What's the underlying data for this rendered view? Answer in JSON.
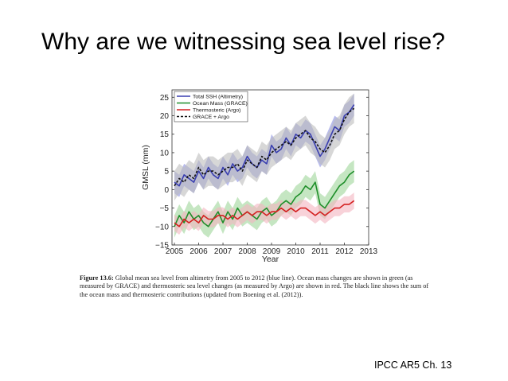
{
  "slide": {
    "title": "Why are we witnessing sea level rise?",
    "source": "IPCC AR5 Ch. 13"
  },
  "figure": {
    "caption_label": "Figure 13.6:",
    "caption_text": "Global mean sea level from altimetry from 2005 to 2012 (blue line). Ocean mass changes are shown in green (as measured by GRACE) and thermosteric sea level changes (as measured by Argo) are shown in red. The black line shows the sum of the ocean mass and thermosteric contributions (updated from Boening et al. (2012))."
  },
  "chart_data": {
    "type": "line",
    "title": "",
    "xlabel": "Year",
    "ylabel": "GMSL (mm)",
    "xlim": [
      2004.9,
      2013
    ],
    "ylim": [
      -15,
      27
    ],
    "xticks": [
      2005,
      2006,
      2007,
      2008,
      2009,
      2010,
      2011,
      2012,
      2013
    ],
    "yticks": [
      -15,
      -10,
      -5,
      0,
      5,
      10,
      15,
      20,
      25
    ],
    "ytick_labels": [
      "−15",
      "−10",
      "−5",
      "0",
      "5",
      "10",
      "15",
      "20",
      "25"
    ],
    "legend_position": "top-left",
    "series": [
      {
        "name": "Total SSH (Altimetry)",
        "color": "#3a3fb0",
        "band_color": "#8a8fe0",
        "dash": false,
        "band": 3,
        "x": [
          2005.0,
          2005.2,
          2005.4,
          2005.6,
          2005.8,
          2006.0,
          2006.2,
          2006.4,
          2006.6,
          2006.8,
          2007.0,
          2007.2,
          2007.4,
          2007.6,
          2007.8,
          2008.0,
          2008.2,
          2008.4,
          2008.6,
          2008.8,
          2009.0,
          2009.2,
          2009.4,
          2009.6,
          2009.8,
          2010.0,
          2010.2,
          2010.4,
          2010.6,
          2010.8,
          2011.0,
          2011.2,
          2011.4,
          2011.6,
          2011.8,
          2012.0,
          2012.2,
          2012.4
        ],
        "y": [
          2,
          1,
          4,
          3,
          2,
          5,
          3,
          6,
          4,
          3,
          6,
          4,
          7,
          5,
          6,
          9,
          7,
          6,
          8,
          7,
          12,
          10,
          11,
          14,
          12,
          15,
          14,
          16,
          15,
          12,
          9,
          11,
          14,
          17,
          16,
          20,
          21,
          23
        ]
      },
      {
        "name": "Ocean Mass (GRACE)",
        "color": "#1f8f2a",
        "band_color": "#9fd69a",
        "dash": false,
        "band": 3,
        "x": [
          2005.0,
          2005.2,
          2005.4,
          2005.6,
          2005.8,
          2006.0,
          2006.2,
          2006.4,
          2006.6,
          2006.8,
          2007.0,
          2007.2,
          2007.4,
          2007.6,
          2007.8,
          2008.0,
          2008.2,
          2008.4,
          2008.6,
          2008.8,
          2009.0,
          2009.2,
          2009.4,
          2009.6,
          2009.8,
          2010.0,
          2010.2,
          2010.4,
          2010.6,
          2010.8,
          2011.0,
          2011.2,
          2011.4,
          2011.6,
          2011.8,
          2012.0,
          2012.2,
          2012.4
        ],
        "y": [
          -10,
          -7,
          -9,
          -6,
          -8,
          -7,
          -9,
          -10,
          -8,
          -6,
          -9,
          -6,
          -8,
          -5,
          -7,
          -6,
          -7,
          -8,
          -6,
          -5,
          -7,
          -6,
          -4,
          -3,
          -4,
          -2,
          -1,
          1,
          0,
          2,
          -4,
          -5,
          -3,
          -1,
          1,
          2,
          4,
          5
        ]
      },
      {
        "name": "Thermosteric (Argo)",
        "color": "#d42020",
        "band_color": "#f4b4c0",
        "dash": false,
        "band": 2.2,
        "x": [
          2005.0,
          2005.2,
          2005.4,
          2005.6,
          2005.8,
          2006.0,
          2006.2,
          2006.4,
          2006.6,
          2006.8,
          2007.0,
          2007.2,
          2007.4,
          2007.6,
          2007.8,
          2008.0,
          2008.2,
          2008.4,
          2008.6,
          2008.8,
          2009.0,
          2009.2,
          2009.4,
          2009.6,
          2009.8,
          2010.0,
          2010.2,
          2010.4,
          2010.6,
          2010.8,
          2011.0,
          2011.2,
          2011.4,
          2011.6,
          2011.8,
          2012.0,
          2012.2,
          2012.4
        ],
        "y": [
          -9,
          -10,
          -8,
          -9,
          -8,
          -9,
          -7,
          -8,
          -8,
          -7,
          -7,
          -8,
          -7,
          -8,
          -7,
          -6,
          -7,
          -6,
          -6,
          -7,
          -6,
          -6,
          -5,
          -6,
          -5,
          -6,
          -5,
          -5,
          -6,
          -7,
          -6,
          -7,
          -6,
          -5,
          -5,
          -4,
          -4,
          -3
        ]
      },
      {
        "name": "GRACE + Argo",
        "color": "#111111",
        "band_color": "#bdbdbd",
        "dash": true,
        "band": 4,
        "x": [
          2005.0,
          2005.2,
          2005.4,
          2005.6,
          2005.8,
          2006.0,
          2006.2,
          2006.4,
          2006.6,
          2006.8,
          2007.0,
          2007.2,
          2007.4,
          2007.6,
          2007.8,
          2008.0,
          2008.2,
          2008.4,
          2008.6,
          2008.8,
          2009.0,
          2009.2,
          2009.4,
          2009.6,
          2009.8,
          2010.0,
          2010.2,
          2010.4,
          2010.6,
          2010.8,
          2011.0,
          2011.2,
          2011.4,
          2011.6,
          2011.8,
          2012.0,
          2012.2,
          2012.4
        ],
        "y": [
          1,
          3,
          2,
          4,
          3,
          6,
          4,
          5,
          5,
          4,
          5,
          6,
          6,
          7,
          5,
          8,
          7,
          6,
          9,
          8,
          10,
          11,
          12,
          13,
          12,
          14,
          15,
          16,
          14,
          13,
          11,
          10,
          12,
          15,
          16,
          19,
          21,
          22
        ]
      }
    ]
  }
}
